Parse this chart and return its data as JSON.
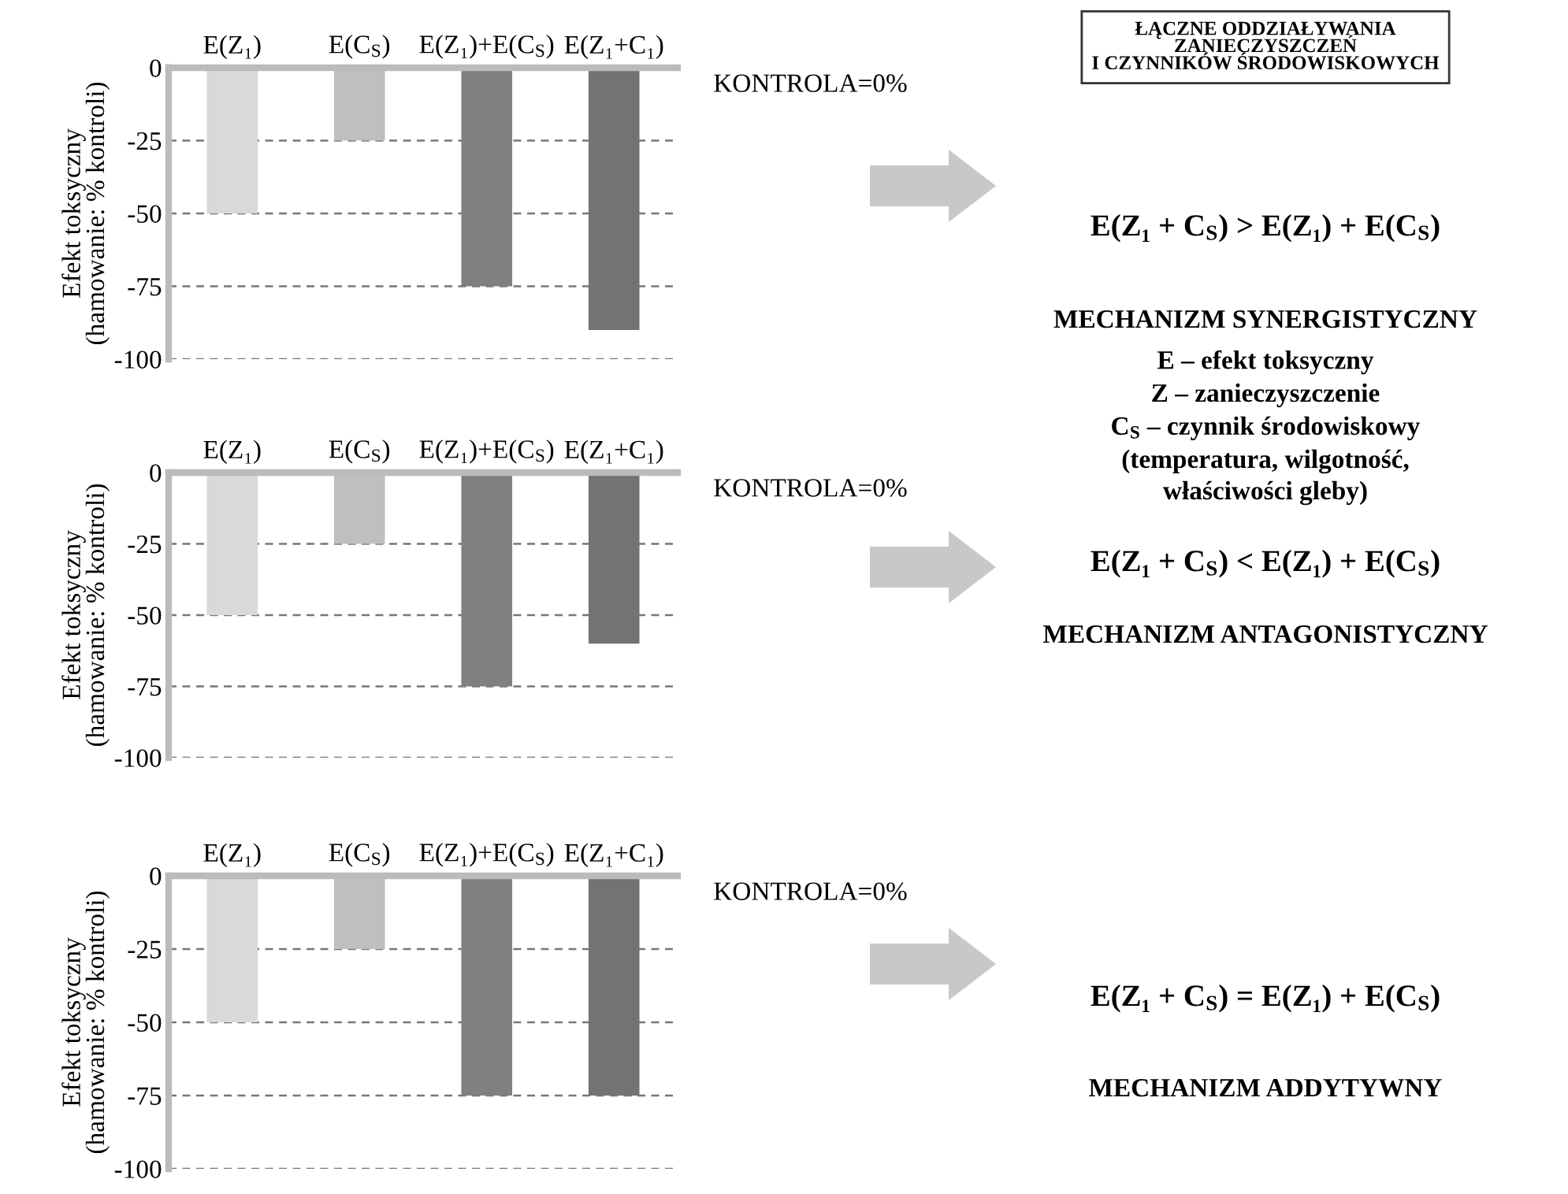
{
  "chart_data": [
    {
      "type": "bar",
      "categories": [
        "E(Z₁)",
        "E(C$_{S}$)",
        "E(Z₁)+E(C$_{S}$)",
        "E(Z₁+C₁)"
      ],
      "values": [
        -50,
        -25,
        -75,
        -90
      ],
      "colors": [
        "#d9d9d9",
        "#bfbfbf",
        "#808080",
        "#737373"
      ],
      "ylabel": "Efekt toksyczny\n(hamowanie: % kontroli)",
      "ylim": [
        -100,
        0
      ],
      "yticks": [
        -100,
        -75,
        -50,
        -25,
        0
      ],
      "grid": "y",
      "annotations": [
        "KONTROLA=0%",
        "E(Z₁ + C$_{S}$) > E(Z₁) + E(C$_{S}$)",
        "MECHANIZM SYNERGISTYCZNY"
      ]
    },
    {
      "type": "bar",
      "categories": [
        "E(Z₁)",
        "E(C$_{S}$)",
        "E(Z₁)+E(C$_{S}$)",
        "E(Z₁+C₁)"
      ],
      "values": [
        -50,
        -25,
        -75,
        -60
      ],
      "colors": [
        "#d9d9d9",
        "#bfbfbf",
        "#808080",
        "#737373"
      ],
      "ylabel": "Efekt toksyczny\n(hamowanie: % kontroli)",
      "ylim": [
        -100,
        0
      ],
      "yticks": [
        -100,
        -75,
        -50,
        -25,
        0
      ],
      "grid": "y",
      "annotations": [
        "KONTROLA=0%",
        "E(Z₁ + C$_{S}$) < E(Z₁) + E(C$_{S}$)",
        "MECHANIZM ANTAGONISTYCZNY"
      ]
    },
    {
      "type": "bar",
      "categories": [
        "E(Z₁)",
        "E(C$_{S}$)",
        "E(Z₁)+E(C$_{S}$)",
        "E(Z₁+C₁)"
      ],
      "values": [
        -50,
        -25,
        -75,
        -75
      ],
      "colors": [
        "#d9d9d9",
        "#bfbfbf",
        "#808080",
        "#737373"
      ],
      "ylabel": "Efekt toksyczny\n(hamowanie: % kontroli)",
      "ylim": [
        -100,
        0
      ],
      "yticks": [
        -100,
        -75,
        -50,
        -25,
        0
      ],
      "grid": "y",
      "annotations": [
        "KONTROLA=0%",
        "E(Z₁ + C$_{S}$) = E(Z₁) + E(C$_{S}$)",
        "MECHANIZM ADDYTYWNY"
      ]
    },
    {
      "type": "other",
      "title": "ŁĄCZNE ODDZIAŁYWANIA\nZANIECZYSZCZEŃ\nI CZYNNIKÓW ŚRODOWISKOWYCH",
      "annotations": [
        "E – efekt toksyczny",
        "Z – zanieczyszczenie",
        "C$_{S}$ – czynnik środowiskowy",
        "(temperatura, wilgotność,",
        "właściwości gleby)"
      ]
    }
  ]
}
